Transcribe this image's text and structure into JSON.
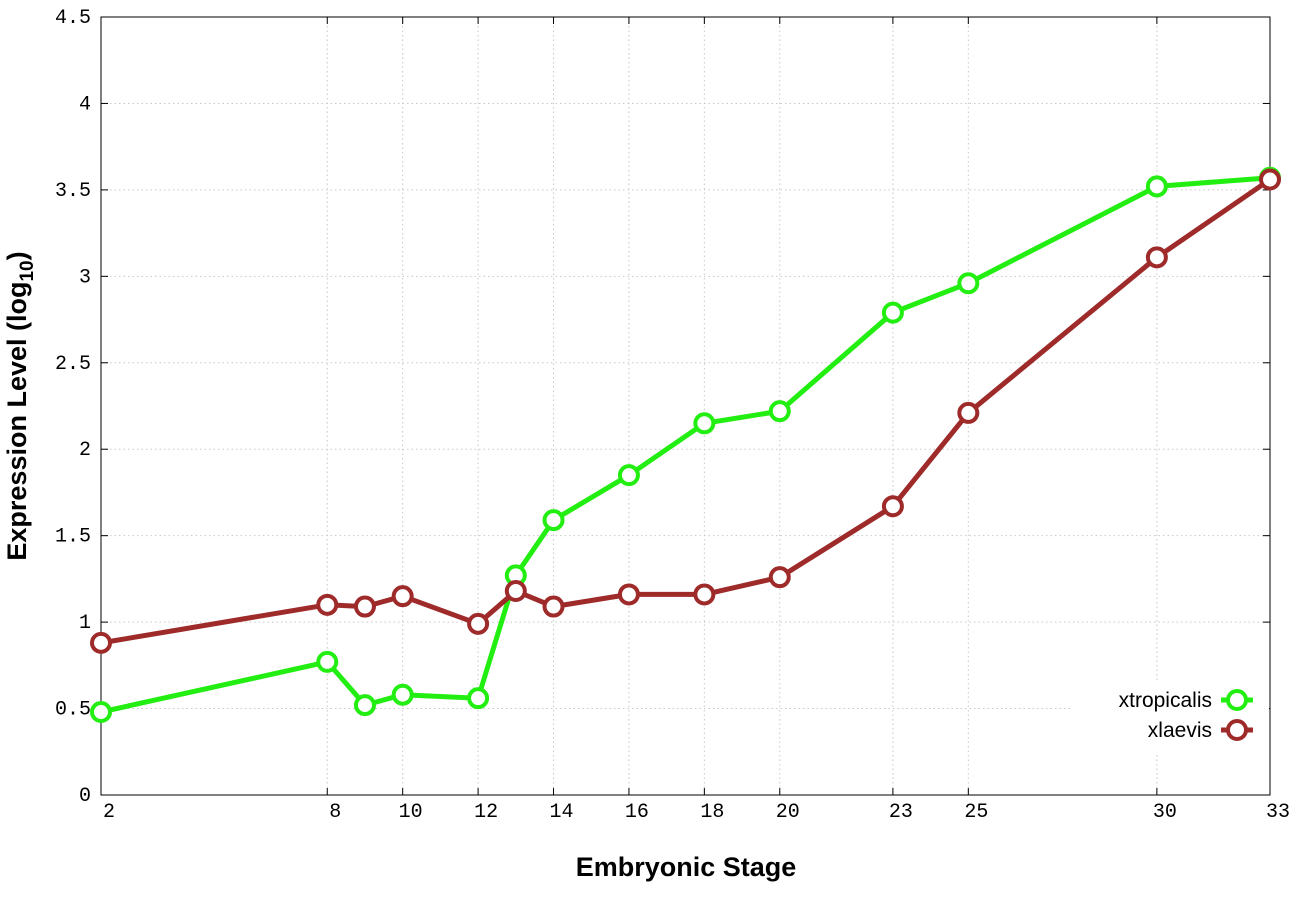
{
  "chart_data": {
    "type": "line",
    "title": "",
    "xlabel": "Embryonic Stage",
    "ylabel": "Expression Level (log",
    "ylabel_subscript": "10",
    "ylabel_suffix": ")",
    "xlim": [
      2,
      33
    ],
    "ylim": [
      0,
      4.5
    ],
    "x_ticks": [
      2,
      8,
      10,
      12,
      14,
      16,
      18,
      20,
      23,
      25,
      30,
      33
    ],
    "y_ticks": [
      0,
      0.5,
      1,
      1.5,
      2,
      2.5,
      3,
      3.5,
      4,
      4.5
    ],
    "y_tick_labels": [
      "0",
      "0.5",
      "1",
      "1.5",
      "2",
      "2.5",
      "3",
      "3.5",
      "4",
      "4.5"
    ],
    "grid": true,
    "legend_position": "bottom-right",
    "x_points": [
      2,
      8,
      9,
      10,
      12,
      13,
      14,
      16,
      18,
      20,
      23,
      25,
      30,
      33
    ],
    "series": [
      {
        "name": "xtropicalis",
        "color": "#22ee11",
        "values": [
          0.48,
          0.77,
          0.52,
          0.58,
          0.56,
          1.27,
          1.59,
          1.85,
          2.15,
          2.22,
          2.79,
          2.96,
          3.52,
          3.57
        ]
      },
      {
        "name": "xlaevis",
        "color": "#9e2a2a",
        "values": [
          0.88,
          1.1,
          1.09,
          1.15,
          0.99,
          1.18,
          1.09,
          1.16,
          1.16,
          1.26,
          1.67,
          2.21,
          3.11,
          3.56
        ]
      }
    ]
  }
}
